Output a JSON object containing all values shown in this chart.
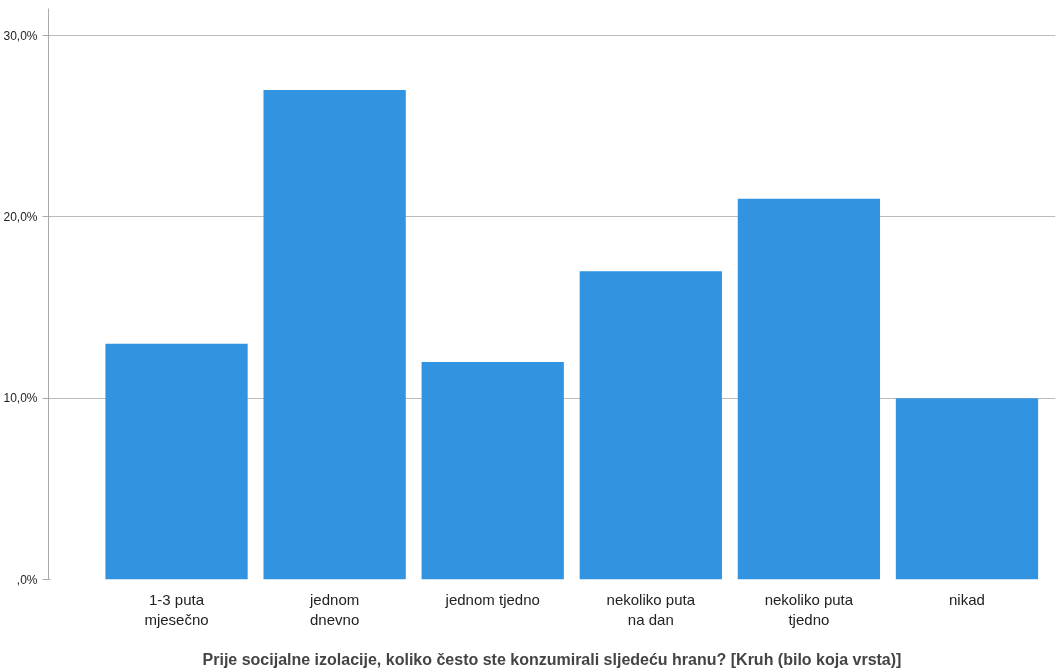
{
  "chart_data": {
    "type": "bar",
    "xlabel": "Prije socijalne izolacije, koliko često ste konzumirali sljedeću hranu? [Kruh (bilo koja vrsta)]",
    "categories": [
      "1-3 puta\nmjesečno",
      "jednom\ndnevno",
      "jednom tjedno",
      "nekoliko puta\nna dan",
      "nekoliko puta\ntjedno",
      "nikad"
    ],
    "values": [
      13,
      27,
      12,
      17,
      21,
      10
    ],
    "color": "#3294e0",
    "ylim": [
      0,
      31.5
    ],
    "yticks": [
      {
        "value": 0,
        "label": ",0%"
      },
      {
        "value": 10,
        "label": "10,0%"
      },
      {
        "value": 20,
        "label": "20,0%"
      },
      {
        "value": 30,
        "label": "30,0%"
      }
    ],
    "grid": "y"
  }
}
